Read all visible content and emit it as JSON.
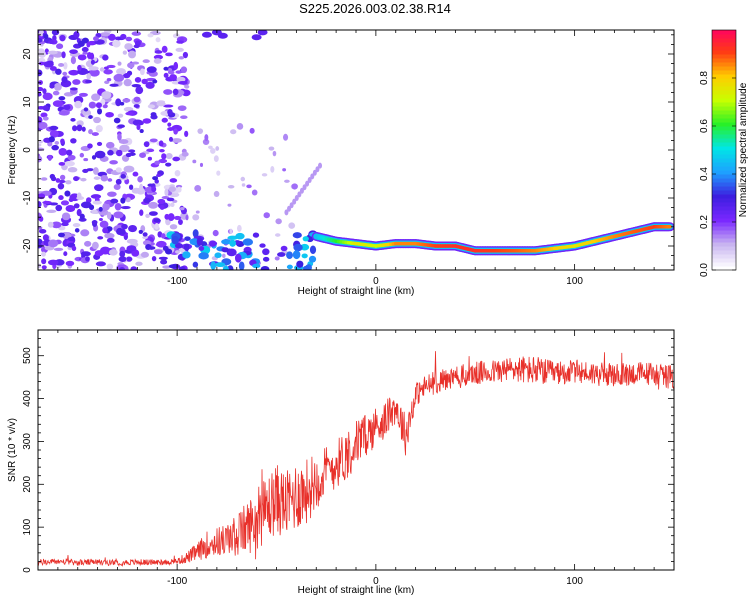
{
  "figure_title": "S225.2026.003.02.38.R14",
  "chart_data": [
    {
      "type": "heatmap",
      "xlabel": "Height of straight line (km)",
      "ylabel": "Frequency (Hz)",
      "xlim": [
        -170,
        150
      ],
      "ylim": [
        -25,
        25
      ],
      "x_ticks": [
        -100,
        0,
        100
      ],
      "y_ticks": [
        -20,
        -10,
        0,
        10,
        20
      ],
      "colorbar": {
        "label": "Normalized spectral amplitude",
        "range": [
          0,
          1
        ],
        "ticks": [
          0,
          0.2,
          0.4,
          0.6,
          0.8
        ],
        "tick_labels": [
          "0.0",
          "0.2",
          "0.4",
          "0.6",
          "0.8"
        ],
        "colors": [
          "#ffffff",
          "#c8b4f0",
          "#7a28ff",
          "#3c1ee0",
          "#1ea0ff",
          "#00e6e6",
          "#28f028",
          "#c8ff00",
          "#ffcc00",
          "#ff3c14",
          "#ff0064"
        ]
      },
      "ridge": {
        "description": "dominant frequency track",
        "x": [
          -30,
          -20,
          -10,
          0,
          10,
          20,
          30,
          40,
          50,
          60,
          70,
          80,
          90,
          100,
          110,
          120,
          130,
          140,
          148
        ],
        "y": [
          -18,
          -19,
          -19.5,
          -20,
          -19.5,
          -19.5,
          -20,
          -20,
          -21,
          -21,
          -21,
          -21,
          -20.5,
          -20,
          -19,
          -18,
          -17,
          -16,
          -16
        ],
        "amplitude": [
          0.45,
          0.6,
          0.75,
          0.7,
          0.85,
          0.85,
          0.9,
          0.92,
          0.92,
          0.9,
          0.88,
          0.85,
          0.8,
          0.75,
          0.8,
          0.85,
          0.88,
          0.9,
          0.85
        ]
      }
    },
    {
      "type": "line",
      "xlabel": "Height of straight line (km)",
      "ylabel": "SNR (10 * v/v)",
      "xlim": [
        -170,
        150
      ],
      "ylim": [
        0,
        560
      ],
      "x_ticks": [
        -100,
        0,
        100
      ],
      "y_ticks": [
        0,
        100,
        200,
        300,
        400,
        500
      ],
      "series": [
        {
          "name": "SNR",
          "color": "#e8302a",
          "x": [
            -170,
            -160,
            -150,
            -140,
            -130,
            -120,
            -110,
            -100,
            -95,
            -90,
            -85,
            -80,
            -75,
            -70,
            -65,
            -60,
            -55,
            -50,
            -45,
            -40,
            -35,
            -30,
            -25,
            -20,
            -15,
            -10,
            -5,
            0,
            5,
            10,
            15,
            20,
            25,
            30,
            40,
            50,
            60,
            70,
            80,
            90,
            100,
            110,
            120,
            130,
            140,
            150
          ],
          "values": [
            15,
            18,
            15,
            16,
            15,
            16,
            16,
            18,
            25,
            35,
            50,
            55,
            60,
            65,
            80,
            95,
            120,
            140,
            130,
            150,
            160,
            190,
            210,
            230,
            250,
            280,
            300,
            320,
            340,
            370,
            300,
            400,
            420,
            430,
            440,
            450,
            455,
            460,
            455,
            450,
            455,
            450,
            445,
            450,
            450,
            440
          ],
          "noise": [
            10,
            10,
            10,
            10,
            10,
            10,
            10,
            10,
            20,
            30,
            45,
            50,
            55,
            70,
            90,
            100,
            110,
            120,
            110,
            120,
            110,
            100,
            90,
            80,
            90,
            80,
            70,
            70,
            60,
            60,
            70,
            40,
            40,
            40,
            40,
            40,
            40,
            45,
            50,
            40,
            40,
            40,
            40,
            40,
            40,
            40
          ]
        }
      ]
    }
  ]
}
